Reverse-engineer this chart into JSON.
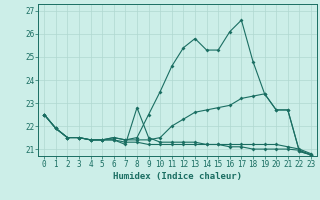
{
  "xlabel": "Humidex (Indice chaleur)",
  "bg_color": "#cceee8",
  "line_color": "#1a6e62",
  "grid_color": "#b0d8d0",
  "xlim": [
    -0.5,
    23.5
  ],
  "ylim": [
    20.7,
    27.3
  ],
  "yticks": [
    21,
    22,
    23,
    24,
    25,
    26,
    27
  ],
  "xticks": [
    0,
    1,
    2,
    3,
    4,
    5,
    6,
    7,
    8,
    9,
    10,
    11,
    12,
    13,
    14,
    15,
    16,
    17,
    18,
    19,
    20,
    21,
    22,
    23
  ],
  "series": [
    [
      22.5,
      21.9,
      21.5,
      21.5,
      21.4,
      21.4,
      21.5,
      21.4,
      21.5,
      22.5,
      23.5,
      24.6,
      25.4,
      25.8,
      25.3,
      25.3,
      26.1,
      26.6,
      24.8,
      23.4,
      22.7,
      22.7,
      20.9,
      20.75
    ],
    [
      22.5,
      21.9,
      21.5,
      21.5,
      21.4,
      21.4,
      21.5,
      21.4,
      21.4,
      21.4,
      21.5,
      22.0,
      22.3,
      22.6,
      22.7,
      22.8,
      22.9,
      23.2,
      23.3,
      23.4,
      22.7,
      22.7,
      20.9,
      20.75
    ],
    [
      22.5,
      21.9,
      21.5,
      21.5,
      21.4,
      21.4,
      21.4,
      21.2,
      22.8,
      21.5,
      21.3,
      21.3,
      21.3,
      21.3,
      21.2,
      21.2,
      21.2,
      21.2,
      21.2,
      21.2,
      21.2,
      21.1,
      21.0,
      20.8
    ],
    [
      22.5,
      21.9,
      21.5,
      21.5,
      21.4,
      21.4,
      21.4,
      21.3,
      21.3,
      21.2,
      21.2,
      21.2,
      21.2,
      21.2,
      21.2,
      21.2,
      21.1,
      21.1,
      21.0,
      21.0,
      21.0,
      21.0,
      20.95,
      20.75
    ]
  ]
}
